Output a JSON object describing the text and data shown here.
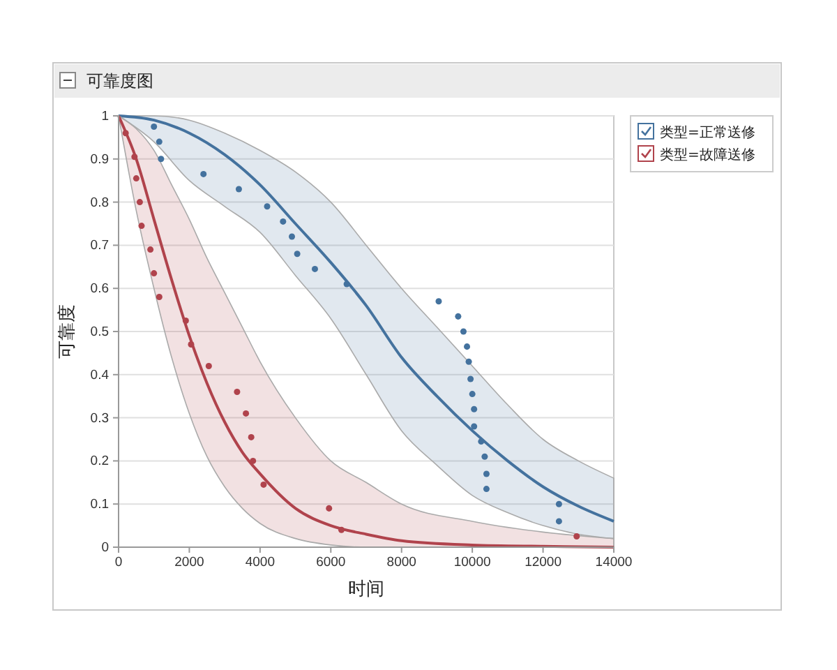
{
  "chart_data": {
    "type": "line",
    "title": "可靠度图",
    "xlabel": "时间",
    "ylabel": "可靠度",
    "xlim": [
      0,
      14000
    ],
    "xticks": [
      0,
      2000,
      4000,
      6000,
      8000,
      10000,
      12000,
      14000
    ],
    "ylim": [
      0,
      1
    ],
    "yticks": [
      0,
      0.1,
      0.2,
      0.3,
      0.4,
      0.5,
      0.6,
      0.7,
      0.8,
      0.9,
      1
    ],
    "grid": "y",
    "legend": "top right",
    "series": [
      {
        "name": "类型=正常送修",
        "marker": "none",
        "color": "#44729e",
        "x": [
          0,
          1000,
          2000,
          3000,
          4000,
          5000,
          6000,
          7000,
          8000,
          9000,
          10000,
          11000,
          12000,
          13000,
          14000
        ],
        "values": [
          1,
          0.99,
          0.96,
          0.91,
          0.84,
          0.75,
          0.66,
          0.56,
          0.44,
          0.35,
          0.27,
          0.2,
          0.14,
          0.095,
          0.06
        ],
        "lower": [
          1,
          0.94,
          0.85,
          0.79,
          0.73,
          0.63,
          0.53,
          0.4,
          0.27,
          0.19,
          0.12,
          0.08,
          0.05,
          0.03,
          0.02
        ],
        "upper": [
          1,
          1,
          0.99,
          0.96,
          0.92,
          0.87,
          0.8,
          0.7,
          0.6,
          0.51,
          0.42,
          0.33,
          0.25,
          0.2,
          0.16
        ]
      },
      {
        "name": "类型=故障送修",
        "marker": "none",
        "color": "#b0434c",
        "x": [
          0,
          500,
          1000,
          1500,
          2000,
          2500,
          3000,
          3500,
          4000,
          5000,
          6000,
          7000,
          8000,
          10000,
          12000,
          14000
        ],
        "values": [
          1,
          0.9,
          0.76,
          0.62,
          0.49,
          0.38,
          0.29,
          0.22,
          0.17,
          0.09,
          0.05,
          0.03,
          0.015,
          0.005,
          0.002,
          0
        ],
        "lower": [
          1,
          0.78,
          0.6,
          0.44,
          0.31,
          0.21,
          0.14,
          0.09,
          0.055,
          0.02,
          0.005,
          0,
          0,
          0,
          0,
          0
        ],
        "upper": [
          1,
          0.97,
          0.92,
          0.84,
          0.76,
          0.67,
          0.59,
          0.51,
          0.43,
          0.3,
          0.2,
          0.15,
          0.1,
          0.06,
          0.035,
          0.02
        ]
      },
      {
        "type": "scatter",
        "marker": "circle",
        "color": "#44729e",
        "x": [
          1000,
          1150,
          1200,
          2400,
          3400,
          4200,
          4650,
          4900,
          5050,
          5550,
          6450,
          9050,
          9600,
          9750,
          9850,
          9900,
          9950,
          10000,
          10050,
          10050,
          10250,
          10350,
          10400,
          10400,
          12450,
          12450
        ],
        "values": [
          0.975,
          0.94,
          0.9,
          0.865,
          0.83,
          0.79,
          0.755,
          0.72,
          0.68,
          0.645,
          0.61,
          0.57,
          0.535,
          0.5,
          0.465,
          0.43,
          0.39,
          0.355,
          0.32,
          0.28,
          0.245,
          0.21,
          0.17,
          0.135,
          0.1,
          0.06
        ]
      },
      {
        "type": "scatter",
        "marker": "circle",
        "color": "#b0434c",
        "x": [
          200,
          450,
          500,
          600,
          650,
          900,
          1000,
          1150,
          1900,
          2050,
          2550,
          3350,
          3600,
          3750,
          3800,
          4100,
          5950,
          6300,
          12950
        ],
        "values": [
          0.96,
          0.905,
          0.855,
          0.8,
          0.745,
          0.69,
          0.635,
          0.58,
          0.525,
          0.47,
          0.42,
          0.36,
          0.31,
          0.255,
          0.2,
          0.145,
          0.09,
          0.04,
          0.025
        ]
      }
    ]
  }
}
